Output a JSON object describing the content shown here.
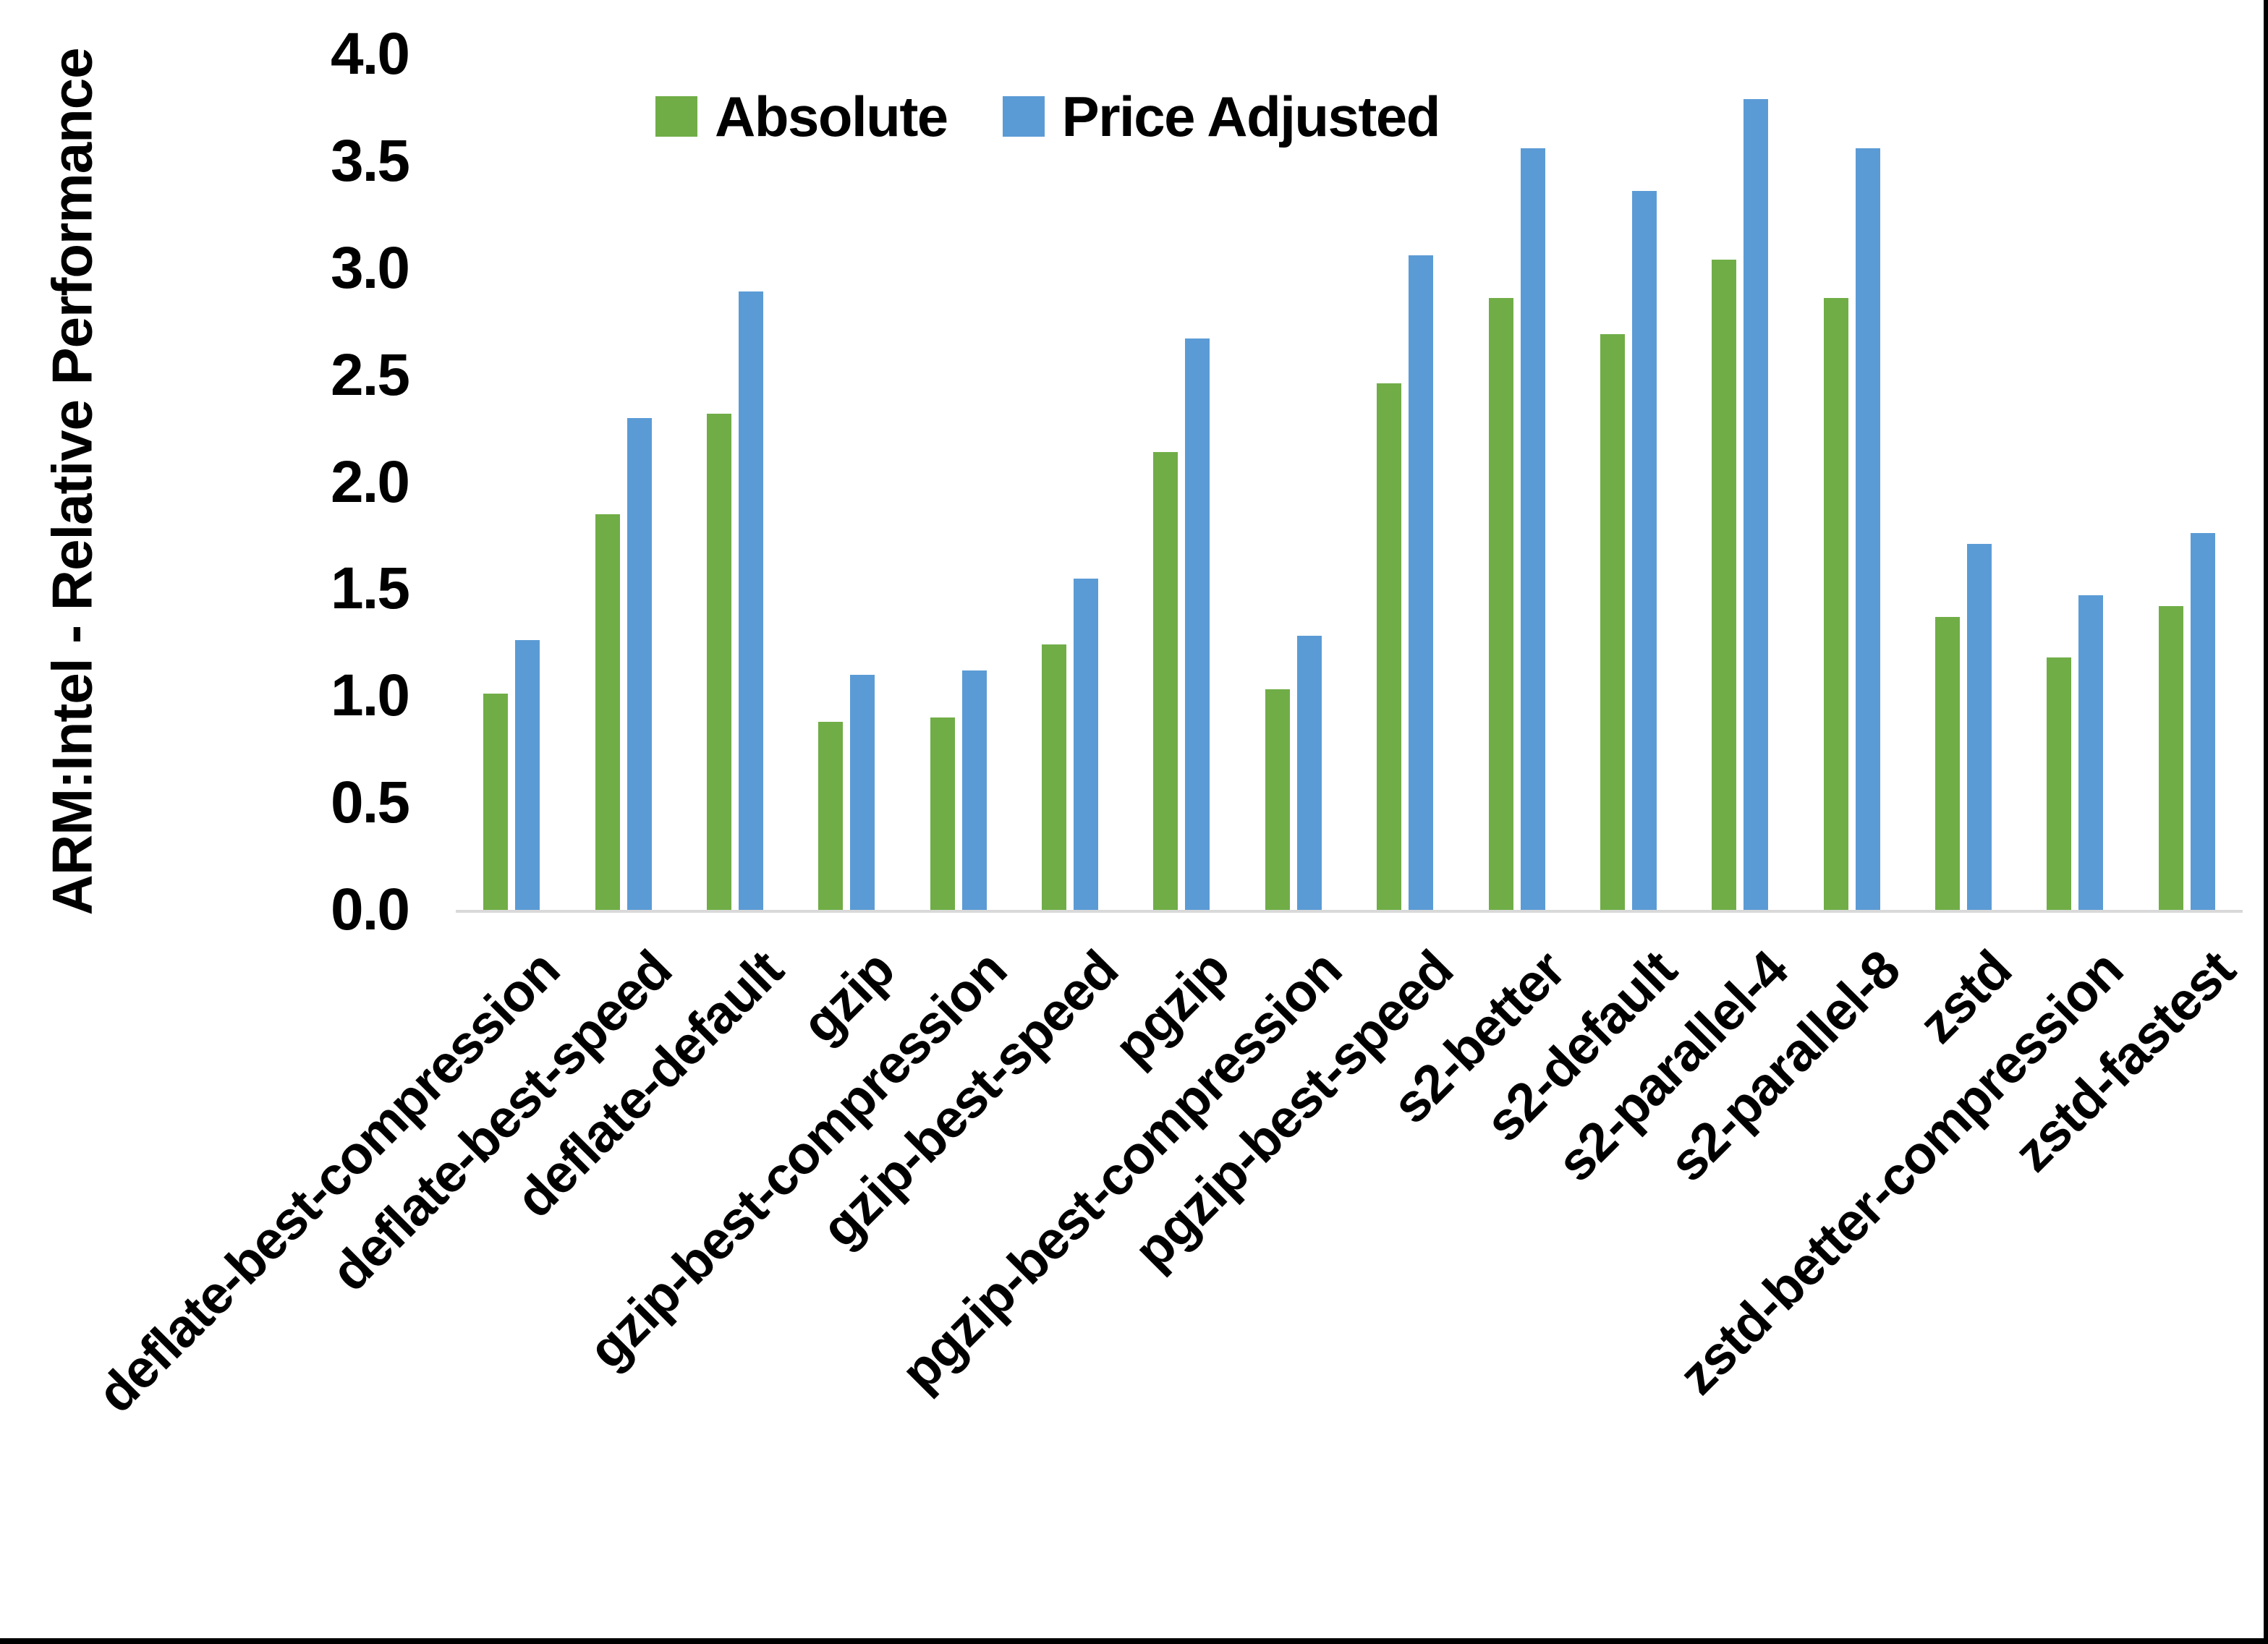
{
  "frame": {
    "border_color": "#000000",
    "background": "#ffffff"
  },
  "chart_data": {
    "type": "bar",
    "title": "",
    "ylabel": "ARM:Intel - Relative Performance",
    "xlabel": "",
    "ylim": [
      0.0,
      4.0
    ],
    "ytick_step": 0.5,
    "ytick_labels": [
      "0.0",
      "0.5",
      "1.0",
      "1.5",
      "2.0",
      "2.5",
      "3.0",
      "3.5",
      "4.0"
    ],
    "grid": false,
    "axis_line_color": "#D9D9D9",
    "legend_position": "top",
    "categories": [
      "deflate-best-compression",
      "deflate-best-speed",
      "deflate-default",
      "gzip",
      "gzip-best-compression",
      "gzip-best-speed",
      "pgzip",
      "pgzip-best-compression",
      "pgzip-best-speed",
      "s2-better",
      "s2-default",
      "s2-parallel-4",
      "s2-parallel-8",
      "zstd",
      "zstd-better-compression",
      "zstd-fastest"
    ],
    "series": [
      {
        "name": "Absolute",
        "color": "#70AD47",
        "values": [
          1.01,
          1.85,
          2.32,
          0.88,
          0.9,
          1.24,
          2.14,
          1.03,
          2.46,
          2.86,
          2.69,
          3.04,
          2.86,
          1.37,
          1.18,
          1.42
        ]
      },
      {
        "name": "Price Adjusted",
        "color": "#5B9BD5",
        "values": [
          1.26,
          2.3,
          2.89,
          1.1,
          1.12,
          1.55,
          2.67,
          1.28,
          3.06,
          3.56,
          3.36,
          3.79,
          3.56,
          1.71,
          1.47,
          1.76
        ]
      }
    ]
  }
}
